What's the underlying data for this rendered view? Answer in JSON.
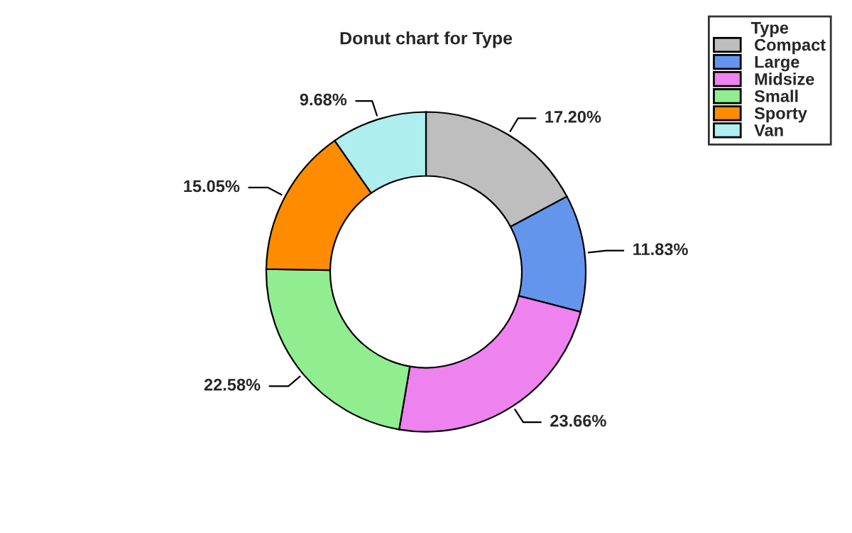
{
  "chart_data": {
    "type": "donut",
    "title": "Donut chart for Type",
    "legend_title": "Type",
    "legend": "top right",
    "categories": [
      "Compact",
      "Large",
      "Midsize",
      "Small",
      "Sporty",
      "Van"
    ],
    "values": [
      17.2,
      11.83,
      23.66,
      22.58,
      15.05,
      9.68
    ],
    "value_labels": [
      "17.20%",
      "11.83%",
      "23.66%",
      "22.58%",
      "15.05%",
      "9.68%"
    ],
    "colors": [
      "#bebebe",
      "#6495ed",
      "#ee82ee",
      "#90ee90",
      "#ff8c00",
      "#afeeee"
    ]
  }
}
